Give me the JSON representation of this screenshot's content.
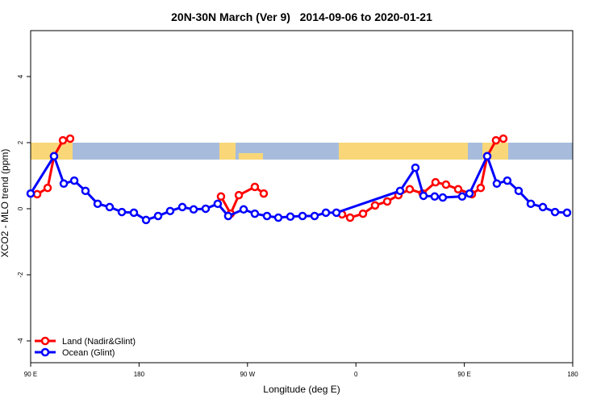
{
  "chart_data": {
    "type": "line",
    "title": "20N-30N March (Ver 9)   2014-09-06 to 2020-01-21",
    "x_label": "Longitude (deg E)",
    "y_label": "XCO2 - MLO trend (ppm)",
    "xlim": [
      90,
      540
    ],
    "xticks": [
      {
        "value": 90,
        "label": "90 E"
      },
      180,
      {
        "value": 270,
        "label": "90 W"
      },
      {
        "value": 360,
        "label": "0"
      },
      {
        "value": 450,
        "label": "90 E"
      },
      {
        "value": 540,
        "label": "180"
      }
    ],
    "ylim": [
      -4.66,
      5.39
    ],
    "yticks": [
      -4,
      -2,
      0,
      2,
      4
    ],
    "legend": "bottom-left",
    "series": [
      {
        "name": "Land (Nadir&Glint)",
        "color": "#ff0000",
        "x": [
          95.4,
          104.1,
          109.4,
          116.8,
          122.8,
          null,
          248,
          256,
          262.8,
          276.1,
          283.5,
          null,
          348.5,
          355.2,
          365.9,
          375.9,
          386,
          395.3,
          404.7,
          415.4,
          426.1,
          434.8,
          444.9,
          456.3,
          463.6,
          469,
          476.3,
          482.4
        ],
        "values": [
          0.44,
          0.63,
          1.59,
          2.07,
          2.12,
          null,
          0.37,
          -0.15,
          0.41,
          0.66,
          0.46,
          null,
          -0.17,
          -0.27,
          -0.15,
          0.1,
          0.22,
          0.41,
          0.59,
          0.46,
          0.8,
          0.73,
          0.59,
          0.44,
          0.63,
          1.59,
          2.07,
          2.12
        ]
      },
      {
        "name": "Ocean (Glint)",
        "color": "#0000ff",
        "x": [
          90,
          109.4,
          117.5,
          126.2,
          135.5,
          145.6,
          155.6,
          165.7,
          175.7,
          185.8,
          195.8,
          205.8,
          215.9,
          225.3,
          235.3,
          245.3,
          254,
          266.8,
          276.1,
          286.2,
          295.6,
          305.6,
          315.7,
          325.7,
          335.1,
          343.8,
          396.7,
          409.4,
          416.1,
          425.4,
          432.1,
          448.2,
          454.3,
          469,
          477,
          485.7,
          495.1,
          505.2,
          515.2,
          525.3,
          535.3
        ],
        "values": [
          0.46,
          1.59,
          0.76,
          0.85,
          0.54,
          0.15,
          0.05,
          -0.1,
          -0.12,
          -0.34,
          -0.22,
          -0.07,
          0.05,
          -0.02,
          0,
          0.15,
          -0.22,
          -0.02,
          -0.15,
          -0.22,
          -0.27,
          -0.24,
          -0.22,
          -0.22,
          -0.12,
          -0.12,
          0.54,
          1.24,
          0.39,
          0.37,
          0.34,
          0.37,
          0.46,
          1.59,
          0.76,
          0.85,
          0.54,
          0.15,
          0.05,
          -0.1,
          -0.12
        ]
      }
    ]
  }
}
